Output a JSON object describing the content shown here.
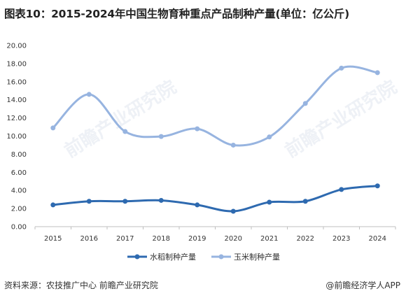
{
  "title": "图表10：2015-2024年中国生物育种重点产品制种产量(单位：亿公斤)",
  "watermark": "前瞻产业研究院",
  "source": "资料来源：农技推广中心 前瞻产业研究院",
  "credit": "@前瞻经济学人APP",
  "colors": {
    "rice": "#2e6ab0",
    "corn": "#97b4e0",
    "grid": "#d9d9d9",
    "axis": "#bfbfbf"
  },
  "chart_data": {
    "type": "line",
    "x": [
      "2015",
      "2016",
      "2017",
      "2018",
      "2019",
      "2020",
      "2021",
      "2022",
      "2023",
      "2024"
    ],
    "ylim": [
      0,
      20
    ],
    "ytick_step": 2,
    "ytick_labels": [
      "0.00",
      "2.00",
      "4.00",
      "6.00",
      "8.00",
      "10.00",
      "12.00",
      "14.00",
      "16.00",
      "18.00",
      "20.00"
    ],
    "grid": false,
    "smooth": true,
    "legend": "bottom-center",
    "series": [
      {
        "name": "水稻制种产量",
        "color": "#2e6ab0",
        "values": [
          2.4,
          2.8,
          2.8,
          2.9,
          2.4,
          1.7,
          2.7,
          2.8,
          4.1,
          4.5
        ]
      },
      {
        "name": "玉米制种产量",
        "color": "#97b4e0",
        "values": [
          10.9,
          14.6,
          10.5,
          9.95,
          10.8,
          9.0,
          9.9,
          13.6,
          17.5,
          17.0
        ]
      }
    ]
  }
}
